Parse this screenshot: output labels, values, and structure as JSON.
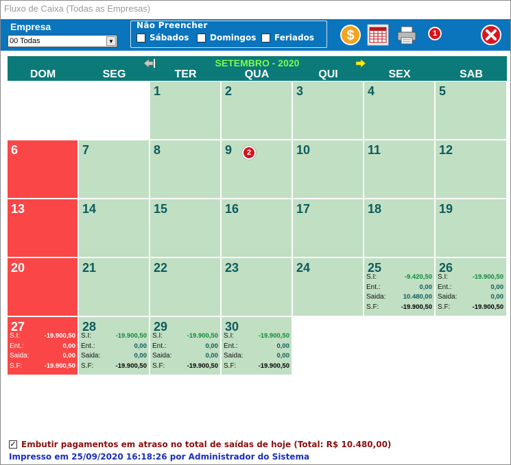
{
  "window": {
    "title": "Fluxo de Caixa (Todas as Empresas)"
  },
  "toolbar": {
    "empresa_label": "Empresa",
    "empresa_value": "00 Todas",
    "nao_preencher_label": "Não Preencher",
    "checks": [
      {
        "label": "Sábados",
        "checked": false
      },
      {
        "label": "Domingos",
        "checked": false
      },
      {
        "label": "Feriados",
        "checked": false
      }
    ],
    "badge_1": "1",
    "icons": [
      "dollar-icon",
      "calendar-grid-icon",
      "printer-icon",
      "close-icon"
    ]
  },
  "calendar": {
    "month_title": "SETEMBRO - 2020",
    "weekdays": [
      "DOM",
      "SEG",
      "TER",
      "QUA",
      "QUI",
      "SEX",
      "SAB"
    ],
    "badge_2": "2",
    "labels": {
      "si": "S.I:",
      "ent": "Ent.:",
      "saida": "Saida:",
      "sf": "S.F:"
    },
    "days": [
      {
        "day": "1"
      },
      {
        "day": "2"
      },
      {
        "day": "3"
      },
      {
        "day": "4"
      },
      {
        "day": "5"
      },
      {
        "day": "6"
      },
      {
        "day": "7"
      },
      {
        "day": "8"
      },
      {
        "day": "9"
      },
      {
        "day": "10"
      },
      {
        "day": "11"
      },
      {
        "day": "12"
      },
      {
        "day": "13"
      },
      {
        "day": "14"
      },
      {
        "day": "15"
      },
      {
        "day": "16"
      },
      {
        "day": "17"
      },
      {
        "day": "18"
      },
      {
        "day": "19"
      },
      {
        "day": "20"
      },
      {
        "day": "21"
      },
      {
        "day": "22"
      },
      {
        "day": "23"
      },
      {
        "day": "24"
      },
      {
        "day": "25",
        "si": "-9.420,50",
        "ent": "0,00",
        "saida": "10.480,00",
        "sf": "-19.900,50"
      },
      {
        "day": "26",
        "si": "-19.900,50",
        "ent": "0,00",
        "saida": "0,00",
        "sf": "-19.900,50"
      },
      {
        "day": "27",
        "si": "-19.900,50",
        "ent": "0,00",
        "saida": "0,00",
        "sf": "-19.900,50"
      },
      {
        "day": "28",
        "si": "-19.900,50",
        "ent": "0,00",
        "saida": "0,00",
        "sf": "-19.900,50"
      },
      {
        "day": "29",
        "si": "-19.900,50",
        "ent": "0,00",
        "saida": "0,00",
        "sf": "-19.900,50"
      },
      {
        "day": "30",
        "si": "-19.900,50",
        "ent": "0,00",
        "saida": "0,00",
        "sf": "-19.900,50"
      }
    ]
  },
  "footer": {
    "embutir_label": "Embutir pagamentos em atraso no total de saídas de hoje (Total: R$ 10.480,00)",
    "embutir_checked": true,
    "embutir_mark": "✓",
    "printed_text": "Impresso em 25/09/2020 16:18:26 por Administrador do Sistema"
  },
  "colors": {
    "toolbar": "#0a74bd",
    "header": "#0b7a78",
    "cell": "#c1dfc3",
    "sunday": "#fa4646",
    "month_title": "#7dfc4a"
  }
}
